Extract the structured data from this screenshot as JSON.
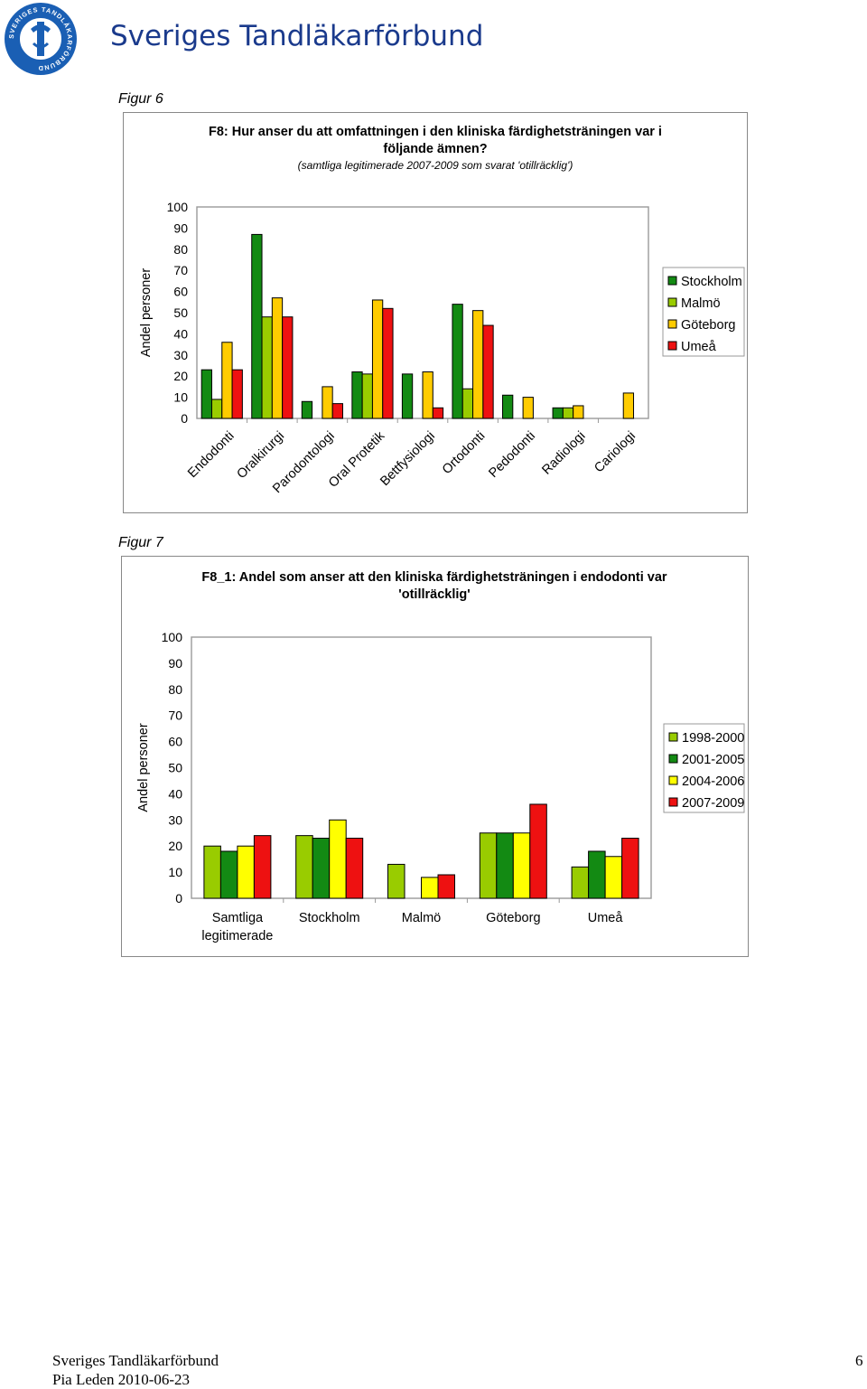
{
  "header": {
    "org_name": "Sveriges Tandläkarförbund",
    "logo_icon": "association-seal-icon",
    "logo_text": "SVERIGES TANDLÄKARFÖRBUND"
  },
  "figures": [
    {
      "label": "Figur 6"
    },
    {
      "label": "Figur 7"
    }
  ],
  "chart_data": [
    {
      "type": "bar",
      "title": "F8: Hur anser du att omfattningen i den kliniska färdighetsträningen var i följande ämnen?",
      "title_lines": [
        "F8: Hur anser du att omfattningen i den kliniska färdighetsträningen var i",
        "följande ämnen?"
      ],
      "subtitle": "(samtliga legitimerade 2007-2009 som svarat 'otillräcklig')",
      "ylabel": "Andel personer",
      "ylim": [
        0,
        100
      ],
      "yticks": [
        "0",
        "10",
        "20",
        "30",
        "40",
        "50",
        "60",
        "70",
        "80",
        "90",
        "100"
      ],
      "grid": false,
      "legend_position": "right",
      "categories": [
        "Endodonti",
        "Oralkirurgi",
        "Parodontologi",
        "Oral Protetik",
        "Bettfysiologi",
        "Ortodonti",
        "Pedodonti",
        "Radiologi",
        "Cariologi"
      ],
      "series": [
        {
          "name": "Stockholm",
          "color": "#138a13",
          "values": [
            23,
            87,
            8,
            22,
            21,
            54,
            11,
            5,
            0
          ]
        },
        {
          "name": "Malmö",
          "color": "#99cc00",
          "values": [
            9,
            48,
            0,
            21,
            0,
            14,
            0,
            5,
            0
          ]
        },
        {
          "name": "Göteborg",
          "color": "#ffcc00",
          "values": [
            36,
            57,
            15,
            56,
            22,
            51,
            10,
            6,
            12
          ]
        },
        {
          "name": "Umeå",
          "color": "#ee1111",
          "values": [
            23,
            48,
            7,
            52,
            5,
            44,
            0,
            0,
            0
          ]
        }
      ]
    },
    {
      "type": "bar",
      "title": "F8_1: Andel som anser att den kliniska färdighetsträningen i endodonti var 'otillräcklig'",
      "title_lines": [
        "F8_1: Andel som anser att den kliniska färdighetsträningen i endodonti var",
        "'otillräcklig'"
      ],
      "subtitle": "",
      "ylabel": "Andel personer",
      "ylim": [
        0,
        100
      ],
      "yticks": [
        "0",
        "10",
        "20",
        "30",
        "40",
        "50",
        "60",
        "70",
        "80",
        "90",
        "100"
      ],
      "grid": false,
      "legend_position": "right",
      "categories": [
        "Samtliga legitimerade",
        "Stockholm",
        "Malmö",
        "Göteborg",
        "Umeå"
      ],
      "category_lines": [
        [
          "Samtliga",
          "legitimerade"
        ],
        [
          "Stockholm"
        ],
        [
          "Malmö"
        ],
        [
          "Göteborg"
        ],
        [
          "Umeå"
        ]
      ],
      "series": [
        {
          "name": "1998-2000",
          "color": "#99cc00",
          "values": [
            20,
            24,
            13,
            25,
            12
          ]
        },
        {
          "name": "2001-2005",
          "color": "#138a13",
          "values": [
            18,
            23,
            0,
            25,
            18
          ]
        },
        {
          "name": "2004-2006",
          "color": "#ffff00",
          "values": [
            20,
            30,
            8,
            25,
            16
          ]
        },
        {
          "name": "2007-2009",
          "color": "#ee1111",
          "values": [
            24,
            23,
            9,
            36,
            23
          ]
        }
      ]
    }
  ],
  "footer": {
    "org": "Sveriges Tandläkarförbund",
    "author_date": "Pia Leden 2010-06-23",
    "page_number": "6"
  }
}
